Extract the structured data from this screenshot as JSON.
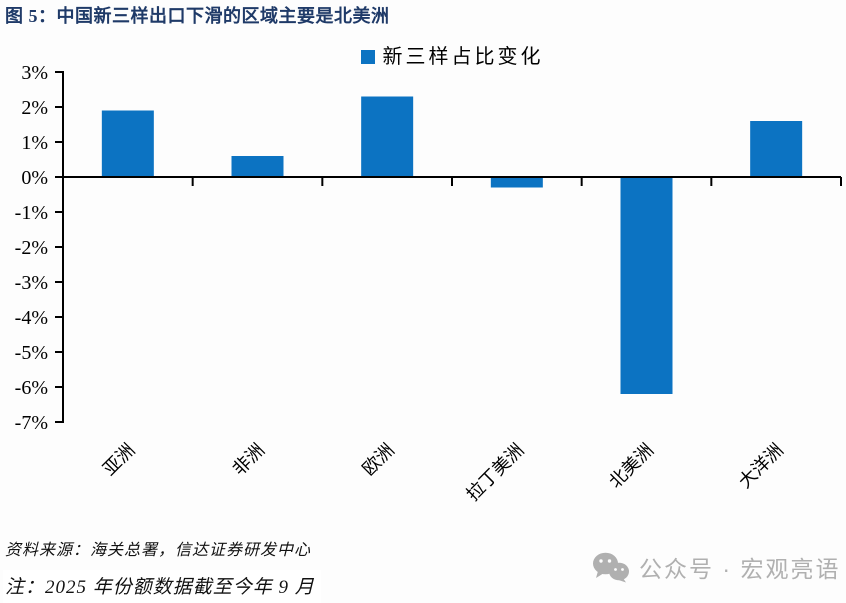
{
  "header": {
    "title": "图 5：中国新三样出口下滑的区域主要是北美洲",
    "title_color": "#1f3a68"
  },
  "legend": {
    "label": "新三样占比变化",
    "swatch_color": "#0c73c2"
  },
  "chart_data": {
    "type": "bar",
    "title": "新三样占比变化",
    "categories": [
      "亚洲",
      "非洲",
      "欧洲",
      "拉丁美洲",
      "北美洲",
      "大洋洲"
    ],
    "values": [
      1.9,
      0.6,
      2.3,
      -0.3,
      -6.2,
      1.6
    ],
    "series": [
      {
        "name": "新三样占比变化",
        "values": [
          1.9,
          0.6,
          2.3,
          -0.3,
          -6.2,
          1.6
        ]
      }
    ],
    "unit": "%",
    "bar_color": "#0c73c2",
    "axis_color": "#000000",
    "ylim": [
      -7,
      3
    ],
    "ytick_step": 1,
    "ytick_labels": [
      "3%",
      "2%",
      "1%",
      "0%",
      "-1%",
      "-2%",
      "-3%",
      "-4%",
      "-5%",
      "-6%",
      "-7%"
    ],
    "grid": false,
    "legend_position": "top-center",
    "xlabel": "",
    "ylabel": ""
  },
  "footer": {
    "source": "资料来源：海关总署，信达证券研发中心",
    "note": "注：2025 年份额数据截至今年 9 月"
  },
  "watermark": {
    "icon": "wechat-icon",
    "text": "公众号 · 宏观亮语",
    "color": "#b0b0b0"
  }
}
